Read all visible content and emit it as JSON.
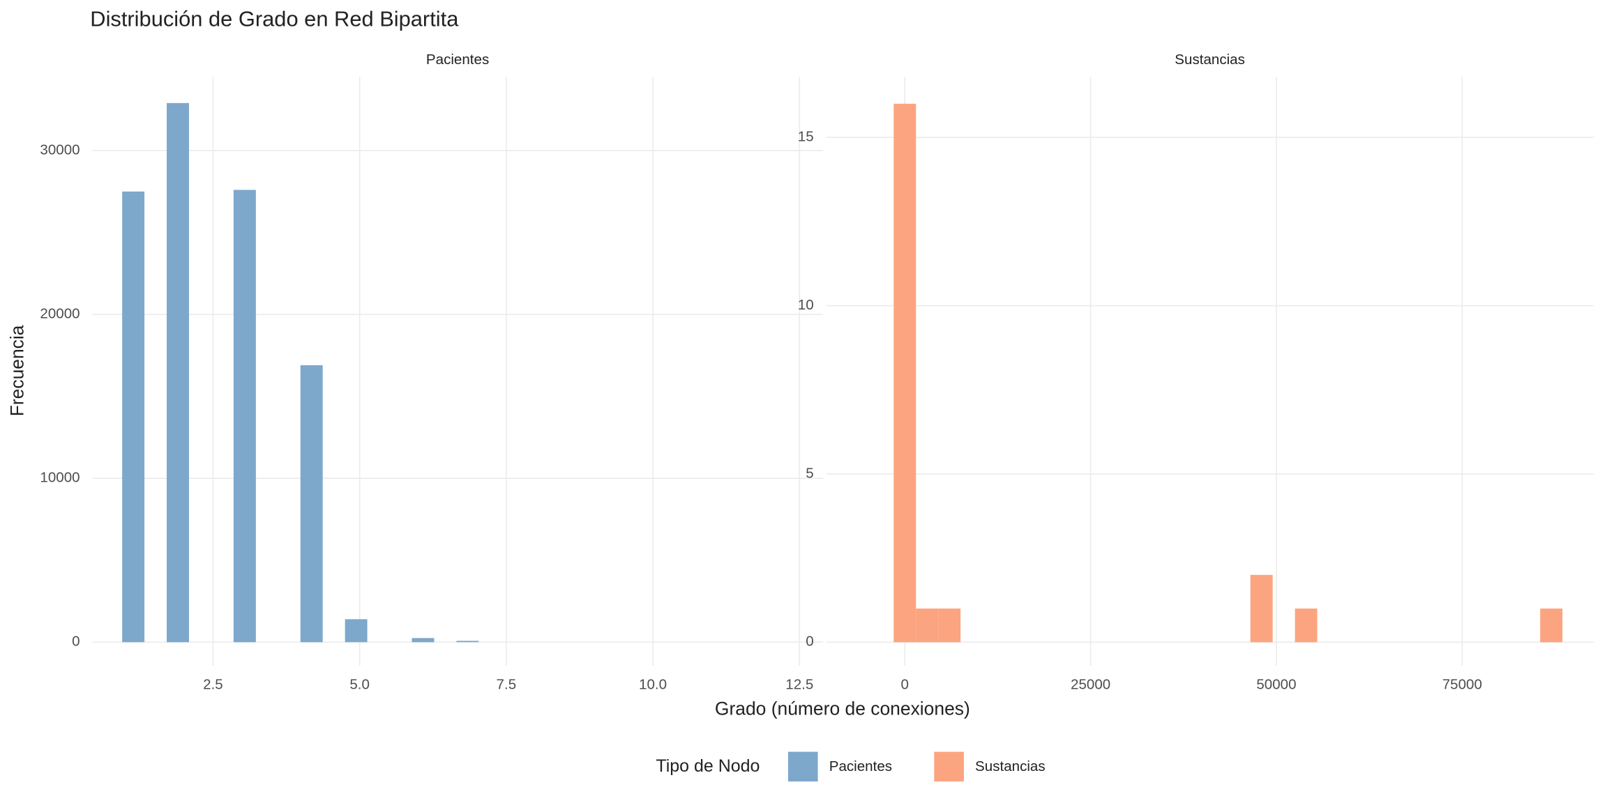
{
  "title": "Distribución de Grado en Red Bipartita",
  "x_label": "Grado (número de conexiones)",
  "y_label": "Frecuencia",
  "legend_title": "Tipo de Nodo",
  "chart_data": [
    {
      "type": "histogram",
      "title": "Pacientes",
      "bins": [
        0.95,
        1.33,
        1.71,
        2.09,
        2.47,
        2.85,
        3.23,
        3.61,
        3.99,
        4.37,
        4.75,
        5.13,
        5.51,
        5.89,
        6.27,
        6.65,
        7.03,
        7.41,
        7.79,
        8.17,
        8.55,
        8.93,
        9.31,
        9.69,
        10.07,
        10.45,
        10.83,
        11.21,
        11.59,
        11.97,
        12.35
      ],
      "series": [
        {
          "name": "Pacientes",
          "color": "#7ea7cc",
          "values": [
            27500,
            0,
            32900,
            0,
            0,
            27600,
            0,
            0,
            16900,
            0,
            1400,
            0,
            0,
            250,
            0,
            80,
            0,
            0,
            0,
            0,
            0,
            0,
            0,
            0,
            0,
            0,
            0,
            0,
            0,
            0
          ]
        }
      ],
      "xlim": [
        0.44,
        12.9
      ],
      "ylim": [
        -1440,
        34500
      ],
      "xticks": [
        2.5,
        {
          "value": 5,
          "label": "5.0"
        },
        7.5,
        {
          "value": 10,
          "label": "10.0"
        },
        12.5
      ],
      "yticks": [
        0,
        10000,
        20000,
        30000
      ],
      "grid": true
    },
    {
      "type": "histogram",
      "title": "Sustancias",
      "bins": [
        -1500,
        1500,
        4500,
        7500,
        10500,
        13500,
        16500,
        19500,
        22500,
        25500,
        28500,
        31500,
        34500,
        37500,
        40500,
        43500,
        46500,
        49500,
        52500,
        55500,
        58500,
        61500,
        64500,
        67500,
        70500,
        73500,
        76500,
        79500,
        82500,
        85500,
        88500
      ],
      "series": [
        {
          "name": "Sustancias",
          "color": "#fca480",
          "values": [
            16,
            1,
            1,
            0,
            0,
            0,
            0,
            0,
            0,
            0,
            0,
            0,
            0,
            0,
            0,
            0,
            2,
            0,
            1,
            0,
            0,
            0,
            0,
            0,
            0,
            0,
            0,
            0,
            0,
            1
          ]
        }
      ],
      "xlim": [
        -10600,
        92700
      ],
      "ylim": [
        -0.7,
        16.8
      ],
      "xticks": [
        0,
        25000,
        50000,
        75000
      ],
      "yticks": [
        0,
        5,
        10,
        15
      ],
      "grid": true
    }
  ]
}
